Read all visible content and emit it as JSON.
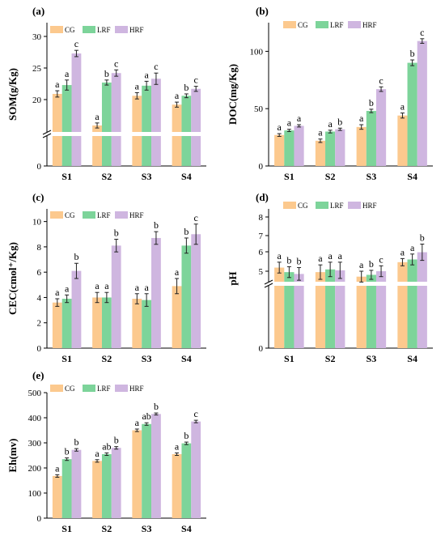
{
  "colors": {
    "CG": "#fcc98e",
    "LRF": "#7dd49a",
    "HRF": "#cfb6e0"
  },
  "chart_data": [
    {
      "id": "a",
      "type": "bar",
      "panel_label": "(a)",
      "ylabel": "SOM(g/Kg)",
      "categories": [
        "S1",
        "S2",
        "S3",
        "S4"
      ],
      "legend": [
        "CG",
        "LRF",
        "HRF"
      ],
      "y_ticks": [
        "0",
        "20",
        "25",
        "30"
      ],
      "axis_break": true,
      "ylim": [
        15,
        30
      ],
      "series": [
        {
          "name": "CG",
          "values": [
            20.9,
            15.9,
            20.6,
            19.2
          ],
          "errors": [
            0.5,
            0.4,
            0.5,
            0.4
          ],
          "letters": [
            "a",
            "a",
            "a",
            "a"
          ]
        },
        {
          "name": "LRF",
          "values": [
            22.3,
            22.7,
            22.2,
            20.6
          ],
          "errors": [
            0.8,
            0.4,
            0.7,
            0.3
          ],
          "letters": [
            "a",
            "b",
            "a",
            "b"
          ]
        },
        {
          "name": "HRF",
          "values": [
            27.3,
            24.2,
            23.3,
            21.7
          ],
          "errors": [
            0.5,
            0.5,
            0.9,
            0.4
          ],
          "letters": [
            "c",
            "c",
            "c",
            "c"
          ]
        }
      ]
    },
    {
      "id": "b",
      "type": "bar",
      "panel_label": "(b)",
      "ylabel": "DOC(mg/Kg)",
      "categories": [
        "S1",
        "S2",
        "S3",
        "S4"
      ],
      "legend": [
        "CG",
        "LRF",
        "HRF"
      ],
      "y_ticks": [
        "0",
        "50",
        "100"
      ],
      "axis_break": false,
      "ylim": [
        0,
        125
      ],
      "series": [
        {
          "name": "CG",
          "values": [
            27,
            22,
            34,
            44
          ],
          "errors": [
            1.2,
            1.5,
            2.0,
            2.2
          ],
          "letters": [
            "a",
            "a",
            "a",
            "a"
          ]
        },
        {
          "name": "LRF",
          "values": [
            31,
            30,
            48,
            90
          ],
          "errors": [
            1.0,
            1.2,
            1.5,
            2.5
          ],
          "letters": [
            "a",
            "a",
            "b",
            "b"
          ]
        },
        {
          "name": "HRF",
          "values": [
            35,
            32,
            67,
            109
          ],
          "errors": [
            1.0,
            1.0,
            2.0,
            2.0
          ],
          "letters": [
            "a",
            "b",
            "c",
            "c"
          ]
        }
      ]
    },
    {
      "id": "c",
      "type": "bar",
      "panel_label": "(c)",
      "ylabel": "CEC(cmol⁺/Kg)",
      "categories": [
        "S1",
        "S2",
        "S3",
        "S4"
      ],
      "legend": [
        "CG",
        "LRF",
        "HRF"
      ],
      "y_ticks": [
        "0",
        "2",
        "4",
        "6",
        "8",
        "10"
      ],
      "axis_break": false,
      "ylim": [
        0,
        11
      ],
      "series": [
        {
          "name": "CG",
          "values": [
            3.6,
            4.0,
            3.9,
            4.9
          ],
          "errors": [
            0.3,
            0.4,
            0.4,
            0.6
          ],
          "letters": [
            "a",
            "a",
            "a",
            "a"
          ]
        },
        {
          "name": "LRF",
          "values": [
            3.9,
            4.0,
            3.8,
            8.1
          ],
          "errors": [
            0.3,
            0.4,
            0.5,
            0.6
          ],
          "letters": [
            "a",
            "a",
            "a",
            "b"
          ]
        },
        {
          "name": "HRF",
          "values": [
            6.1,
            8.1,
            8.7,
            9.0
          ],
          "errors": [
            0.6,
            0.5,
            0.5,
            0.8
          ],
          "letters": [
            "b",
            "b",
            "b",
            "c"
          ]
        }
      ]
    },
    {
      "id": "d",
      "type": "bar",
      "panel_label": "(d)",
      "ylabel": "pH",
      "categories": [
        "S1",
        "S2",
        "S3",
        "S4"
      ],
      "legend": [
        "CG",
        "LRF",
        "HRF"
      ],
      "y_ticks": [
        "0",
        "5",
        "6",
        "7",
        "8"
      ],
      "axis_break": true,
      "ylim": [
        3.7,
        8.2
      ],
      "series": [
        {
          "name": "CG",
          "values": [
            5.2,
            4.95,
            4.7,
            5.5
          ],
          "errors": [
            0.3,
            0.4,
            0.3,
            0.2
          ],
          "letters": [
            "a",
            "a",
            "a",
            "a"
          ]
        },
        {
          "name": "LRF",
          "values": [
            4.95,
            5.1,
            4.8,
            5.65
          ],
          "errors": [
            0.3,
            0.4,
            0.25,
            0.3
          ],
          "letters": [
            "b",
            "a",
            "b",
            "a"
          ]
        },
        {
          "name": "HRF",
          "values": [
            4.85,
            5.05,
            5.0,
            6.05
          ],
          "errors": [
            0.35,
            0.45,
            0.3,
            0.45
          ],
          "letters": [
            "b",
            "a",
            "c",
            "b"
          ]
        }
      ]
    },
    {
      "id": "e",
      "type": "bar",
      "panel_label": "(e)",
      "ylabel": "Eh(mv)",
      "categories": [
        "S1",
        "S2",
        "S3",
        "S4"
      ],
      "legend": [
        "CG",
        "LRF",
        "HRF"
      ],
      "y_ticks": [
        "0",
        "100",
        "200",
        "300",
        "400",
        "500"
      ],
      "axis_break": false,
      "ylim": [
        0,
        500
      ],
      "series": [
        {
          "name": "CG",
          "values": [
            168,
            228,
            350,
            255
          ],
          "errors": [
            5,
            5,
            5,
            5
          ],
          "letters": [
            "a",
            "a",
            "a",
            "a"
          ]
        },
        {
          "name": "LRF",
          "values": [
            235,
            255,
            375,
            298
          ],
          "errors": [
            5,
            5,
            5,
            5
          ],
          "letters": [
            "b",
            "ab",
            "ab",
            "b"
          ]
        },
        {
          "name": "HRF",
          "values": [
            272,
            280,
            415,
            385
          ],
          "errors": [
            5,
            5,
            4,
            5
          ],
          "letters": [
            "b",
            "b",
            "b",
            "c"
          ]
        }
      ]
    }
  ]
}
